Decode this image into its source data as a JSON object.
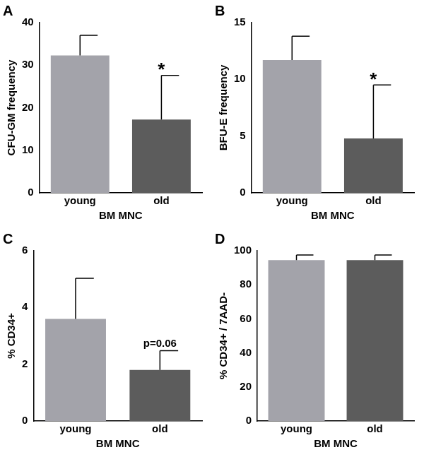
{
  "chart_data": [
    {
      "type": "bar",
      "title": "A",
      "categories": [
        "young",
        "old"
      ],
      "values": [
        32.3,
        17.2
      ],
      "errors": [
        4.7,
        10.4
      ],
      "colors": [
        "#a3a3aa",
        "#5c5c5c"
      ],
      "x_label": "BM MNC",
      "y_label": "CFU-GM frequency",
      "ylim": [
        0,
        40
      ],
      "yticks": [
        0,
        10,
        20,
        30,
        40
      ],
      "grid": false,
      "annotations": [
        {
          "category": "old",
          "text": "*"
        }
      ]
    },
    {
      "type": "bar",
      "title": "B",
      "categories": [
        "young",
        "old"
      ],
      "values": [
        11.7,
        4.8
      ],
      "errors": [
        2.1,
        4.7
      ],
      "colors": [
        "#a3a3aa",
        "#5c5c5c"
      ],
      "x_label": "BM MNC",
      "y_label": "BFU-E frequency",
      "ylim": [
        0,
        15
      ],
      "yticks": [
        0,
        5,
        10,
        15
      ],
      "grid": false,
      "annotations": [
        {
          "category": "old",
          "text": "*"
        }
      ]
    },
    {
      "type": "bar",
      "title": "C",
      "categories": [
        "young",
        "old"
      ],
      "values": [
        3.6,
        1.8
      ],
      "errors": [
        1.43,
        0.68
      ],
      "colors": [
        "#a3a3aa",
        "#5c5c5c"
      ],
      "x_label": "BM MNC",
      "y_label": "% CD34+",
      "ylim": [
        0,
        6
      ],
      "yticks": [
        0,
        2,
        4,
        6
      ],
      "grid": false,
      "annotations": [
        {
          "category": "old",
          "text": "p=0.06"
        }
      ]
    },
    {
      "type": "bar",
      "title": "D",
      "categories": [
        "young",
        "old"
      ],
      "values": [
        94.5,
        94.5
      ],
      "errors": [
        3,
        3
      ],
      "colors": [
        "#a3a3aa",
        "#5c5c5c"
      ],
      "x_label": "BM MNC",
      "y_label": "% CD34+ / 7AAD-",
      "ylim": [
        0,
        100
      ],
      "yticks": [
        0,
        20,
        40,
        60,
        80,
        100
      ],
      "grid": false,
      "annotations": []
    }
  ]
}
